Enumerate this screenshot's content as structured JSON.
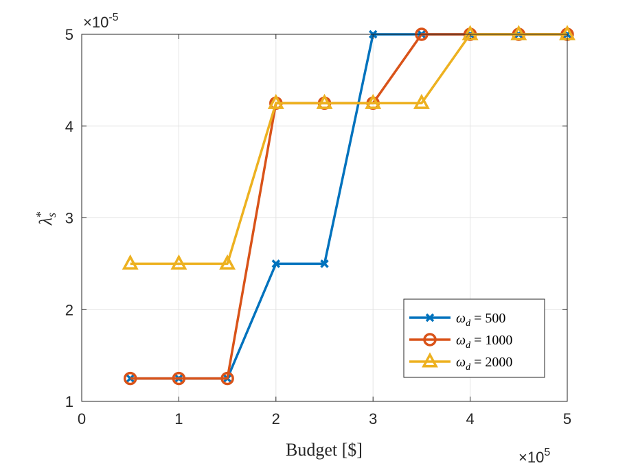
{
  "chart_data": {
    "type": "line",
    "title": "",
    "xlabel": "Budget [$]",
    "ylabel_symbol": "λ",
    "ylabel_sup": "*",
    "ylabel_sub": "s",
    "xlim": [
      0,
      5
    ],
    "ylim": [
      1,
      5
    ],
    "xticks": [
      "0",
      "1",
      "2",
      "3",
      "4",
      "5"
    ],
    "yticks": [
      "1",
      "2",
      "3",
      "4",
      "5"
    ],
    "x_multiplier_base": "×10",
    "x_multiplier_exp": "5",
    "y_multiplier_base": "×10",
    "y_multiplier_exp": "-5",
    "grid": true,
    "legend_position": "bottom-right",
    "x": [
      0.5,
      1.0,
      1.5,
      2.0,
      2.5,
      3.0,
      3.5,
      4.0,
      4.5,
      5.0
    ],
    "series": [
      {
        "name_symbol": "ω",
        "name_sub": "d",
        "name_rest": " = 500",
        "marker": "x",
        "color": "#0072BD",
        "values": [
          1.25,
          1.25,
          1.25,
          2.5,
          2.5,
          5.0,
          5.0,
          5.0,
          5.0,
          5.0
        ]
      },
      {
        "name_symbol": "ω",
        "name_sub": "d",
        "name_rest": " = 1000",
        "marker": "circle",
        "color": "#D95319",
        "values": [
          1.25,
          1.25,
          1.25,
          4.25,
          4.25,
          4.25,
          5.0,
          5.0,
          5.0,
          5.0
        ]
      },
      {
        "name_symbol": "ω",
        "name_sub": "d",
        "name_rest": " = 2000",
        "marker": "triangle",
        "color": "#EDB120",
        "values": [
          2.5,
          2.5,
          2.5,
          4.25,
          4.25,
          4.25,
          4.25,
          5.0,
          5.0,
          5.0
        ]
      }
    ]
  }
}
